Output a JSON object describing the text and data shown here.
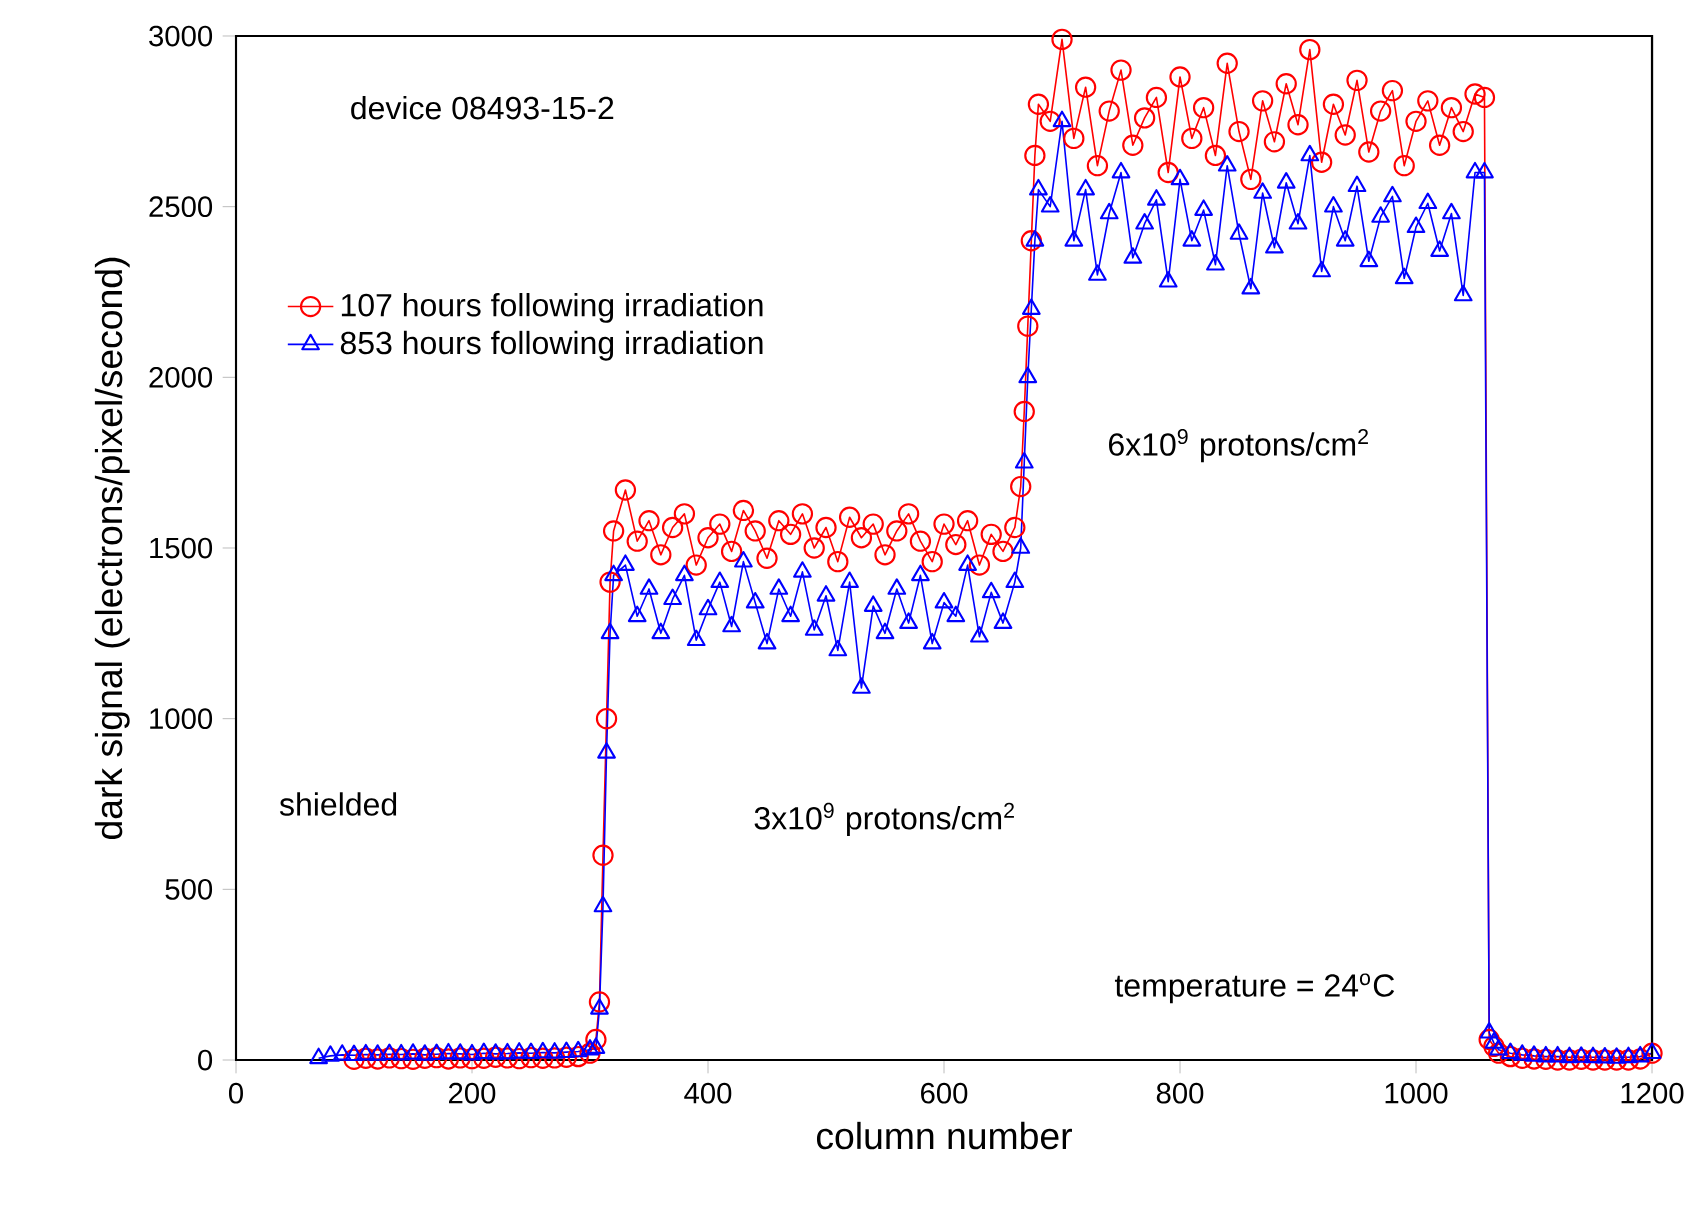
{
  "chart_data": {
    "type": "line",
    "xlabel": "column number",
    "ylabel": "dark signal (electrons/pixel/second)",
    "xlim": [
      0,
      1200
    ],
    "xticks": [
      0,
      200,
      400,
      600,
      800,
      1000,
      1200
    ],
    "ylim": [
      0,
      3000
    ],
    "yticks": [
      0,
      500,
      1000,
      1500,
      2000,
      2500,
      3000
    ],
    "legend": "top left",
    "grid": false,
    "annotations": [
      "device 08493-15-2",
      "shielded",
      "3x10$^{9}$ protons/cm$^{2}$",
      "6x10$^{9}$ protons/cm$^{2}$",
      "temperature = 24$^{o}$C"
    ],
    "x": [
      70,
      80,
      90,
      100,
      110,
      120,
      130,
      140,
      150,
      160,
      170,
      180,
      190,
      200,
      210,
      220,
      230,
      240,
      250,
      260,
      270,
      280,
      290,
      300,
      305,
      308,
      311,
      314,
      317,
      320,
      330,
      340,
      350,
      360,
      370,
      380,
      390,
      400,
      410,
      420,
      430,
      440,
      450,
      460,
      470,
      480,
      490,
      500,
      510,
      520,
      530,
      540,
      550,
      560,
      570,
      580,
      590,
      600,
      610,
      620,
      630,
      640,
      650,
      660,
      665,
      668,
      671,
      674,
      677,
      680,
      690,
      700,
      710,
      720,
      730,
      740,
      750,
      760,
      770,
      780,
      790,
      800,
      810,
      820,
      830,
      840,
      850,
      860,
      870,
      880,
      890,
      900,
      910,
      920,
      930,
      940,
      950,
      960,
      970,
      980,
      990,
      1000,
      1010,
      1020,
      1030,
      1040,
      1050,
      1058,
      1062,
      1066,
      1070,
      1080,
      1090,
      1100,
      1110,
      1120,
      1130,
      1140,
      1150,
      1160,
      1170,
      1180,
      1190,
      1200
    ],
    "series": [
      {
        "name": "107 hours following irradiation",
        "color": "#ff0000",
        "marker": "circle",
        "values": [
          null,
          null,
          null,
          2,
          5,
          3,
          6,
          4,
          2,
          5,
          7,
          3,
          6,
          4,
          5,
          8,
          6,
          4,
          7,
          5,
          6,
          8,
          10,
          20,
          60,
          170,
          600,
          1000,
          1400,
          1550,
          1670,
          1520,
          1580,
          1480,
          1560,
          1600,
          1450,
          1530,
          1570,
          1490,
          1610,
          1550,
          1470,
          1580,
          1540,
          1600,
          1500,
          1560,
          1460,
          1590,
          1530,
          1570,
          1480,
          1550,
          1600,
          1520,
          1460,
          1570,
          1510,
          1580,
          1450,
          1540,
          1490,
          1560,
          1680,
          1900,
          2150,
          2400,
          2650,
          2800,
          2750,
          2990,
          2700,
          2850,
          2620,
          2780,
          2900,
          2680,
          2760,
          2820,
          2600,
          2880,
          2700,
          2790,
          2650,
          2920,
          2720,
          2580,
          2810,
          2690,
          2860,
          2740,
          2960,
          2630,
          2800,
          2710,
          2870,
          2660,
          2780,
          2840,
          2620,
          2750,
          2810,
          2680,
          2790,
          2720,
          2830,
          2820,
          60,
          40,
          20,
          10,
          5,
          3,
          2,
          0,
          0,
          2,
          0,
          0,
          0,
          0,
          3,
          20
        ]
      },
      {
        "name": "853 hours following irradiation",
        "color": "#0000ff",
        "marker": "triangle",
        "values": [
          5,
          12,
          15,
          14,
          16,
          15,
          17,
          16,
          18,
          15,
          17,
          19,
          18,
          16,
          20,
          18,
          19,
          21,
          20,
          22,
          21,
          23,
          25,
          30,
          35,
          150,
          450,
          900,
          1250,
          1420,
          1450,
          1300,
          1380,
          1250,
          1350,
          1420,
          1230,
          1320,
          1400,
          1270,
          1460,
          1340,
          1220,
          1380,
          1300,
          1430,
          1260,
          1360,
          1200,
          1400,
          1090,
          1330,
          1250,
          1380,
          1280,
          1420,
          1220,
          1340,
          1300,
          1450,
          1240,
          1370,
          1280,
          1400,
          1500,
          1750,
          2000,
          2200,
          2400,
          2550,
          2500,
          2750,
          2400,
          2550,
          2300,
          2480,
          2600,
          2350,
          2450,
          2520,
          2280,
          2580,
          2400,
          2490,
          2330,
          2620,
          2420,
          2260,
          2540,
          2380,
          2570,
          2450,
          2650,
          2310,
          2500,
          2400,
          2560,
          2340,
          2470,
          2530,
          2290,
          2440,
          2510,
          2370,
          2480,
          2240,
          2600,
          2600,
          80,
          50,
          30,
          20,
          15,
          12,
          10,
          10,
          8,
          9,
          8,
          7,
          6,
          8,
          10,
          20
        ]
      }
    ]
  }
}
